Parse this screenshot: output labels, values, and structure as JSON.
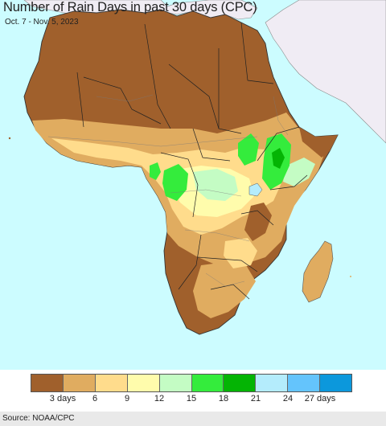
{
  "title": "Number of Rain Days in past 30 days (CPC)",
  "subtitle": "Oct. 7 - Nov. 5, 2023",
  "source": "Source: NOAA/CPC",
  "colors": {
    "ocean": "#ccfcff",
    "non_africa_land": "#f0ecf4",
    "bins": [
      "#a0602c",
      "#e0ac60",
      "#ffdc8c",
      "#fffcac",
      "#c4fcc4",
      "#34ec3c",
      "#04b404",
      "#b4ecfc",
      "#64c4fc",
      "#0c98dc"
    ]
  },
  "legend": {
    "ticks": [
      "3 days",
      "6",
      "9",
      "12",
      "15",
      "18",
      "21",
      "24",
      "27 days"
    ]
  }
}
